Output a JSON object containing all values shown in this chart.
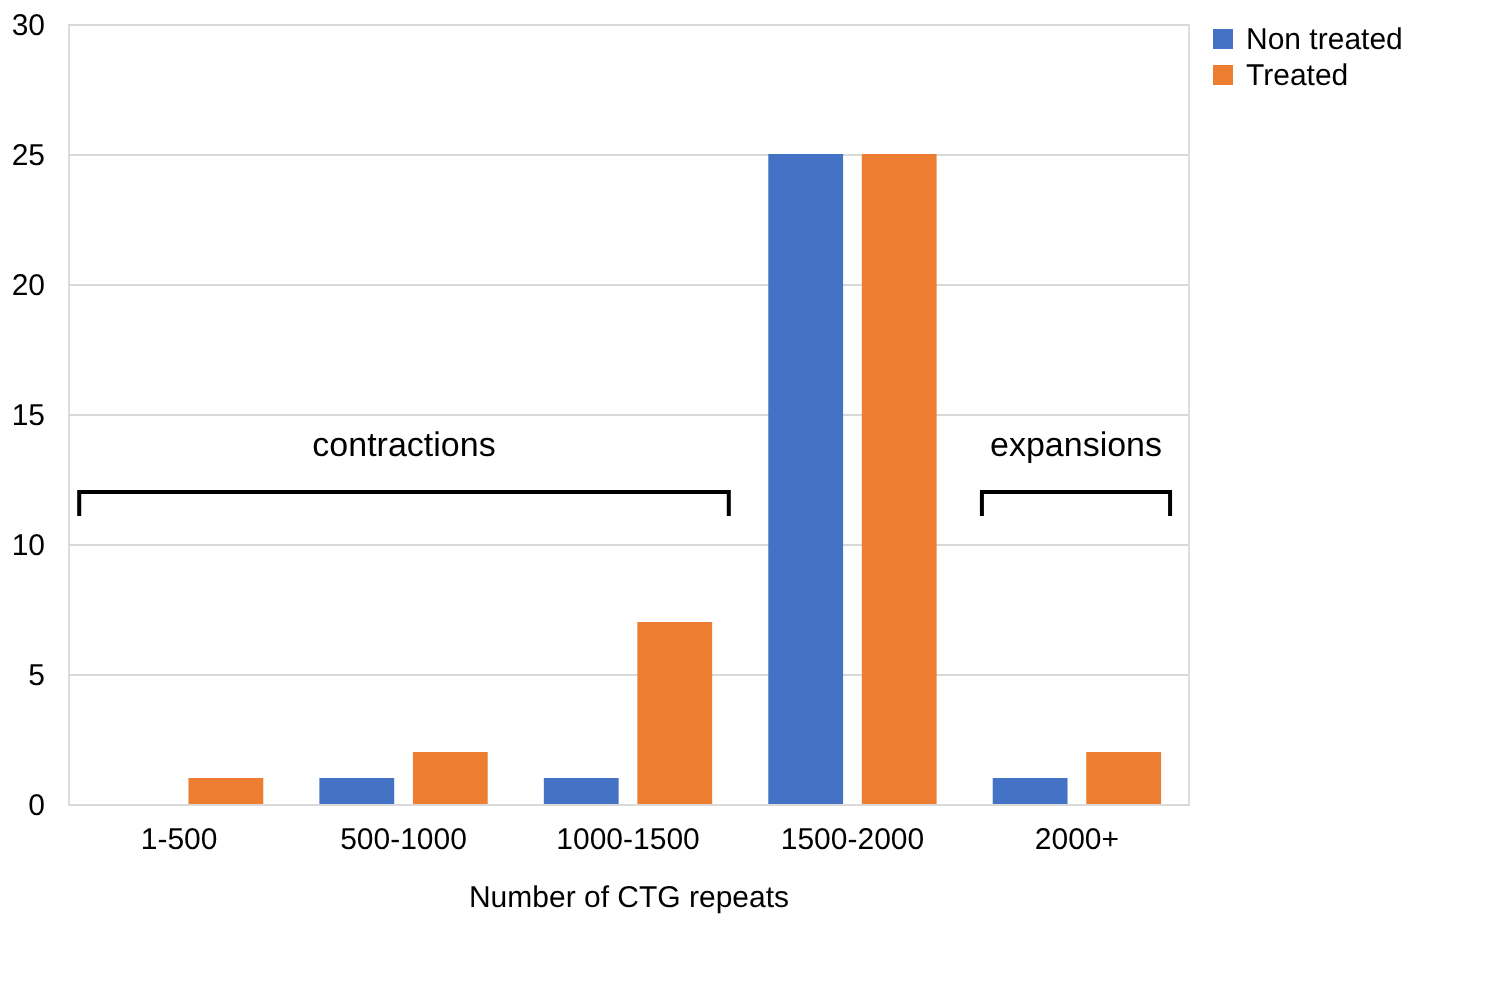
{
  "chart_data": {
    "type": "bar",
    "xlabel": "Number of CTG repeats",
    "categories": [
      "1-500",
      "500-1000",
      "1000-1500",
      "1500-2000",
      "2000+"
    ],
    "series": [
      {
        "name": "Non treated",
        "color": "#4472c4",
        "values": [
          0,
          1,
          1,
          25,
          1
        ]
      },
      {
        "name": "Treated",
        "color": "#ed7d31",
        "values": [
          1,
          2,
          7,
          25,
          2
        ]
      }
    ],
    "ylim": [
      0,
      30
    ],
    "yticks": [
      0,
      5,
      10,
      15,
      20,
      25,
      30
    ],
    "grid": "y",
    "legend": "top right",
    "annotations": [
      "contractions",
      "expansions"
    ]
  }
}
